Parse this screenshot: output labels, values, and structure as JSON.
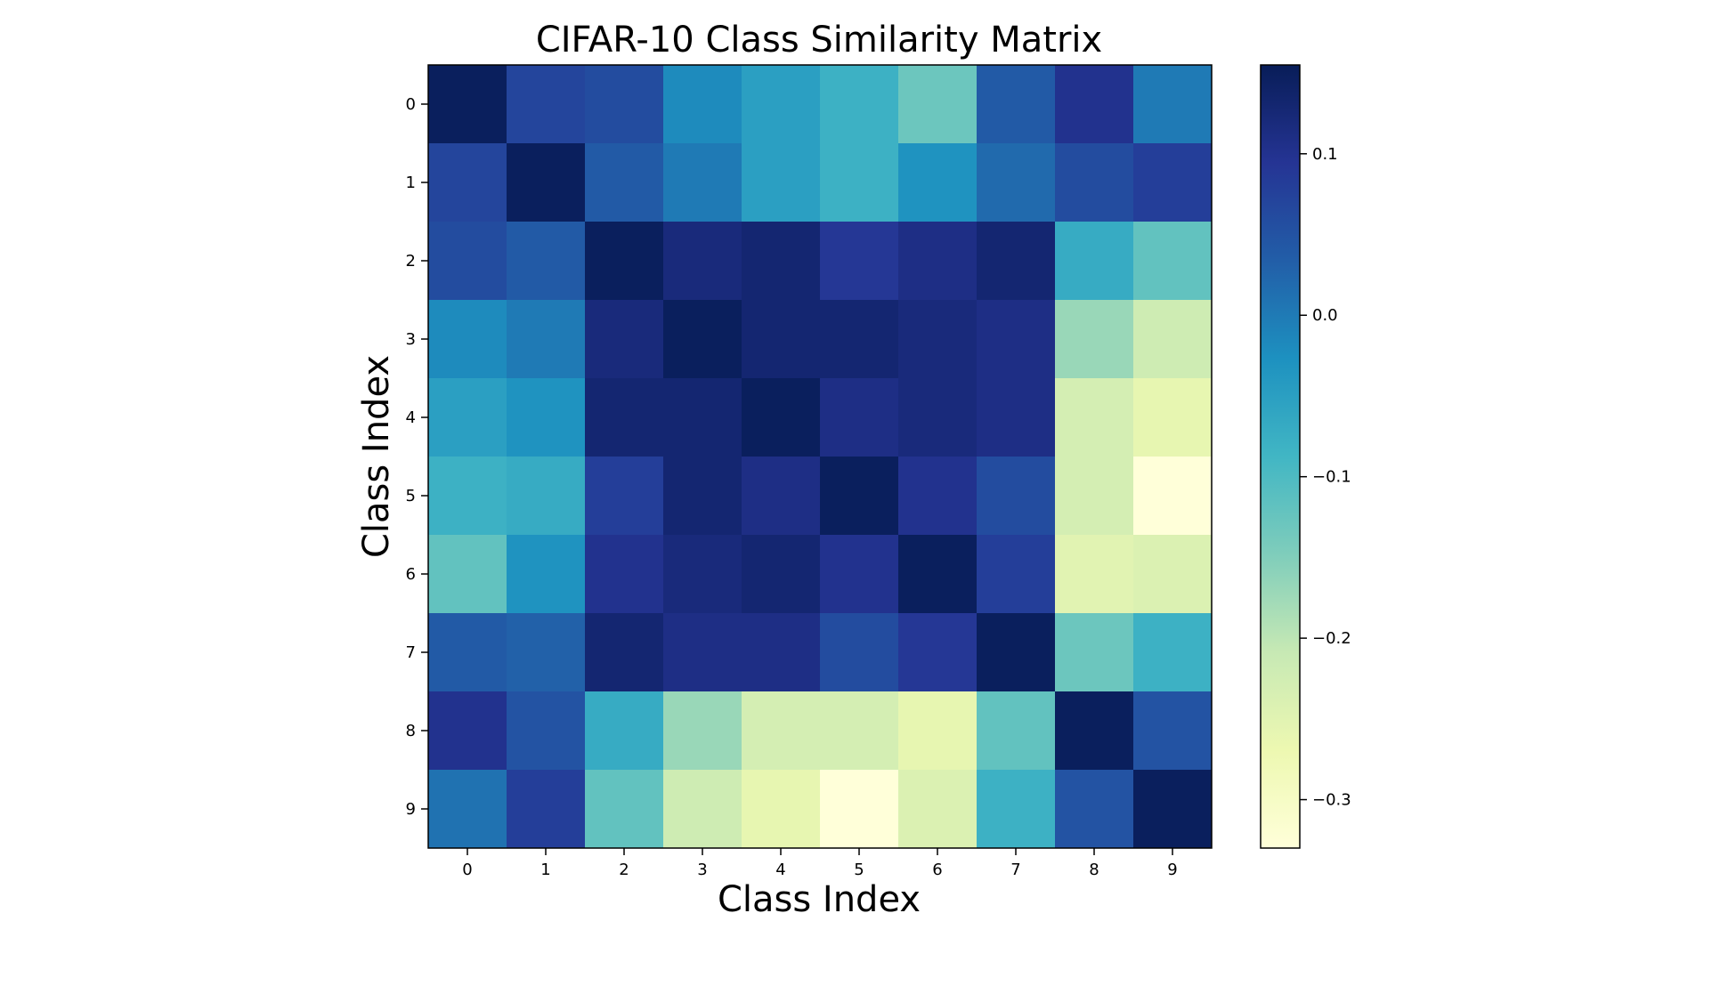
{
  "chart_data": {
    "type": "heatmap",
    "title": "CIFAR-10 Class Similarity Matrix",
    "xlabel": "Class Index",
    "ylabel": "Class Index",
    "x_categories": [
      "0",
      "1",
      "2",
      "3",
      "4",
      "5",
      "6",
      "7",
      "8",
      "9"
    ],
    "y_categories": [
      "0",
      "1",
      "2",
      "3",
      "4",
      "5",
      "6",
      "7",
      "8",
      "9"
    ],
    "colormap": "YlGnBu",
    "vmin": -0.33,
    "vmax": 0.155,
    "colorbar": {
      "ticks": [
        0.1,
        0.0,
        -0.1,
        -0.2,
        -0.3
      ],
      "tick_labels": [
        "0.1",
        "0.0",
        "−0.1",
        "−0.2",
        "−0.3"
      ]
    },
    "values": [
      [
        0.15,
        0.07,
        0.06,
        -0.02,
        -0.05,
        -0.08,
        -0.13,
        0.04,
        0.1,
        0.0
      ],
      [
        0.07,
        0.15,
        0.04,
        0.0,
        -0.05,
        -0.08,
        -0.03,
        0.02,
        0.06,
        0.08
      ],
      [
        0.06,
        0.04,
        0.15,
        0.12,
        0.13,
        0.09,
        0.11,
        0.13,
        -0.07,
        -0.12
      ],
      [
        -0.02,
        0.0,
        0.12,
        0.15,
        0.13,
        0.13,
        0.12,
        0.11,
        -0.17,
        -0.22
      ],
      [
        -0.05,
        -0.03,
        0.13,
        0.13,
        0.15,
        0.11,
        0.12,
        0.11,
        -0.23,
        -0.26
      ],
      [
        -0.08,
        -0.07,
        0.08,
        0.13,
        0.11,
        0.15,
        0.1,
        0.06,
        -0.23,
        -0.33
      ],
      [
        -0.12,
        -0.03,
        0.1,
        0.12,
        0.13,
        0.1,
        0.15,
        0.08,
        -0.25,
        -0.24
      ],
      [
        0.04,
        0.03,
        0.13,
        0.11,
        0.11,
        0.06,
        0.09,
        0.15,
        -0.13,
        -0.08
      ],
      [
        0.1,
        0.05,
        -0.07,
        -0.17,
        -0.23,
        -0.23,
        -0.26,
        -0.12,
        0.15,
        0.05
      ],
      [
        0.01,
        0.08,
        -0.12,
        -0.22,
        -0.26,
        -0.33,
        -0.24,
        -0.08,
        0.05,
        0.15
      ]
    ]
  }
}
